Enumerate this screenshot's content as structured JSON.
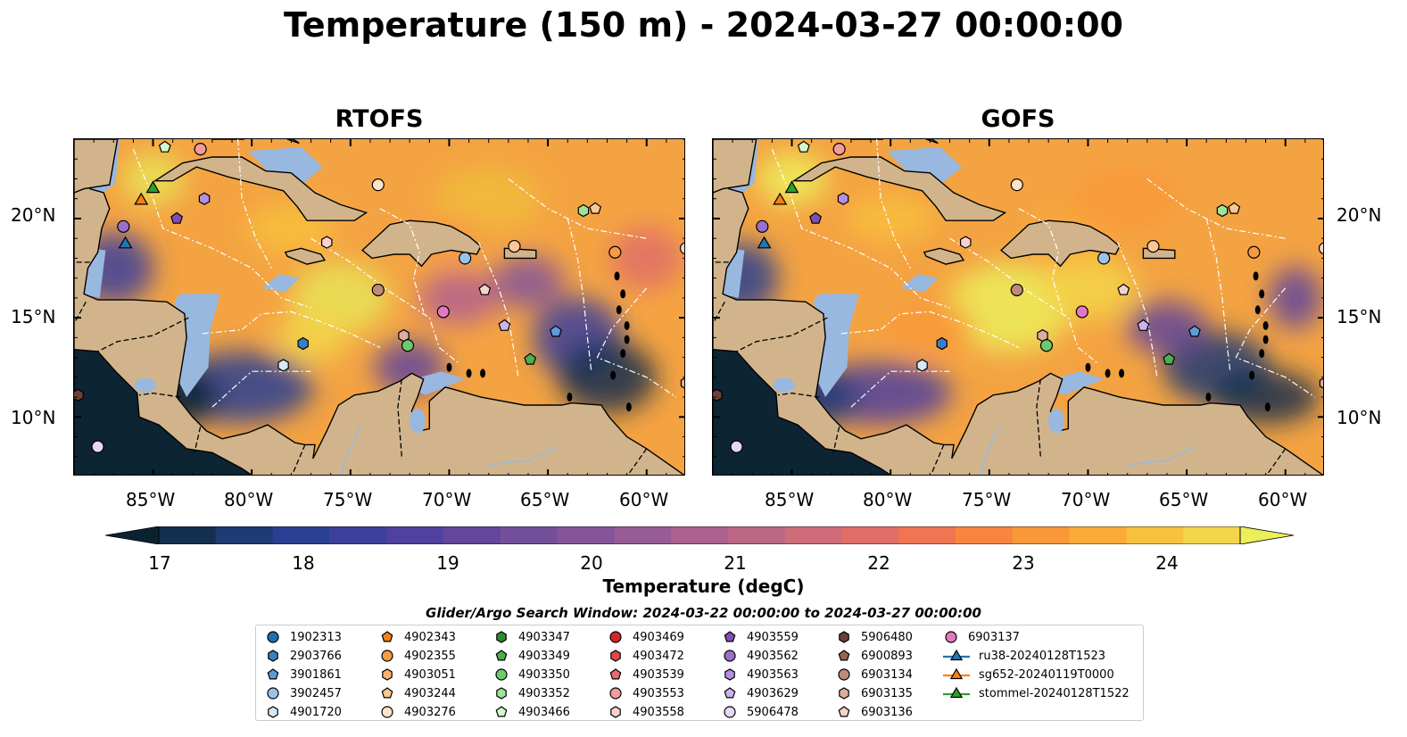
{
  "title": "Temperature (150 m) - 2024-03-27 00:00:00",
  "panels": [
    {
      "title": "RTOFS"
    },
    {
      "title": "GOFS"
    }
  ],
  "map": {
    "lon_range": [
      -89,
      -58
    ],
    "lat_range": [
      7,
      24
    ],
    "x_ticks": [
      "85°W",
      "80°W",
      "75°W",
      "70°W",
      "65°W",
      "60°W"
    ],
    "y_ticks": [
      "20°N",
      "15°N",
      "10°N"
    ],
    "land_color": "#d2b48c",
    "shelf_color": "#98b8e0",
    "deep_color": "#0d2433"
  },
  "colorbar": {
    "label": "Temperature (degC)",
    "ticks": [
      "17",
      "18",
      "19",
      "20",
      "21",
      "22",
      "23",
      "24"
    ],
    "range": [
      16.75,
      24.5
    ],
    "extend": "both",
    "colors": [
      "#0b2231",
      "#14304e",
      "#1e3b73",
      "#2a3f91",
      "#3c409c",
      "#50419e",
      "#62479c",
      "#734f9a",
      "#845599",
      "#975b95",
      "#aa618f",
      "#bc6785",
      "#cf6c79",
      "#e06e68",
      "#ef7553",
      "#f7853d",
      "#f99838",
      "#faaa38",
      "#f8c13d",
      "#f3d549",
      "#ecef5a"
    ]
  },
  "legend": {
    "title": "Glider/Argo Search Window: 2024-03-22 00:00:00 to 2024-03-27 00:00:00",
    "columns": [
      [
        {
          "label": "1902313",
          "marker": "circle",
          "color": "#1f6fb0"
        },
        {
          "label": "2903766",
          "marker": "hexagon",
          "color": "#3a7fc0"
        },
        {
          "label": "3901861",
          "marker": "pentagon",
          "color": "#5e9bd8"
        },
        {
          "label": "3902457",
          "marker": "circle",
          "color": "#9ac3ea"
        },
        {
          "label": "4901720",
          "marker": "hexagon",
          "color": "#d6e8f8"
        }
      ],
      [
        {
          "label": "4902343",
          "marker": "pentagon",
          "color": "#f57f17"
        },
        {
          "label": "4902355",
          "marker": "circle",
          "color": "#f79a44"
        },
        {
          "label": "4903051",
          "marker": "hexagon",
          "color": "#fbb36b"
        },
        {
          "label": "4903244",
          "marker": "pentagon",
          "color": "#fcc796"
        },
        {
          "label": "4903276",
          "marker": "circle",
          "color": "#fde3c7"
        }
      ],
      [
        {
          "label": "4903347",
          "marker": "hexagon",
          "color": "#2e8b2e"
        },
        {
          "label": "4903349",
          "marker": "pentagon",
          "color": "#4caf50"
        },
        {
          "label": "4903350",
          "marker": "circle",
          "color": "#6cc96c"
        },
        {
          "label": "4903352",
          "marker": "hexagon",
          "color": "#9ee39a"
        },
        {
          "label": "4903466",
          "marker": "pentagon",
          "color": "#d3f6cf"
        }
      ],
      [
        {
          "label": "4903469",
          "marker": "circle",
          "color": "#d62728"
        },
        {
          "label": "4903472",
          "marker": "hexagon",
          "color": "#e04848"
        },
        {
          "label": "4903539",
          "marker": "pentagon",
          "color": "#ea6b6b"
        },
        {
          "label": "4903553",
          "marker": "circle",
          "color": "#f39a9a"
        },
        {
          "label": "4903558",
          "marker": "hexagon",
          "color": "#fbd0d0"
        }
      ],
      [
        {
          "label": "4903559",
          "marker": "pentagon",
          "color": "#7e4fb0"
        },
        {
          "label": "4903562",
          "marker": "circle",
          "color": "#9b6fcc"
        },
        {
          "label": "4903563",
          "marker": "hexagon",
          "color": "#b38fde"
        },
        {
          "label": "4903629",
          "marker": "pentagon",
          "color": "#cdb2ec"
        },
        {
          "label": "5906478",
          "marker": "circle",
          "color": "#e5d6f7"
        }
      ],
      [
        {
          "label": "5906480",
          "marker": "hexagon",
          "color": "#6d4037"
        },
        {
          "label": "6900893",
          "marker": "pentagon",
          "color": "#9a6454"
        },
        {
          "label": "6903134",
          "marker": "circle",
          "color": "#c08a7a"
        },
        {
          "label": "6903135",
          "marker": "hexagon",
          "color": "#dbaea1"
        },
        {
          "label": "6903136",
          "marker": "pentagon",
          "color": "#f3d4cb"
        }
      ],
      [
        {
          "label": "6903137",
          "marker": "circle",
          "color": "#e377c2"
        },
        {
          "label": "ru38-20240128T1523",
          "marker": "triangle-line",
          "color": "#1f77b4"
        },
        {
          "label": "sg652-20240119T0000",
          "marker": "triangle-line",
          "color": "#ff7f0e"
        },
        {
          "label": "stommel-20240128T1522",
          "marker": "triangle-line",
          "color": "#2ca02c"
        }
      ]
    ]
  },
  "floats": [
    {
      "lon": -86.5,
      "lat": 19.6,
      "marker": "circle",
      "color": "#9b6fcc"
    },
    {
      "lon": -83.8,
      "lat": 20.0,
      "marker": "pentagon",
      "color": "#7e4fb0"
    },
    {
      "lon": -82.4,
      "lat": 21.0,
      "marker": "hexagon",
      "color": "#b38fde"
    },
    {
      "lon": -84.4,
      "lat": 23.6,
      "marker": "pentagon",
      "color": "#d3f6cf"
    },
    {
      "lon": -82.6,
      "lat": 23.5,
      "marker": "circle",
      "color": "#f39a9a"
    },
    {
      "lon": -73.6,
      "lat": 21.7,
      "marker": "circle",
      "color": "#fde3c7"
    },
    {
      "lon": -76.2,
      "lat": 18.8,
      "marker": "hexagon",
      "color": "#fbd0d0"
    },
    {
      "lon": -73.6,
      "lat": 16.4,
      "marker": "circle",
      "color": "#c08a7a"
    },
    {
      "lon": -70.3,
      "lat": 15.3,
      "marker": "circle",
      "color": "#e377c2"
    },
    {
      "lon": -72.3,
      "lat": 14.1,
      "marker": "hexagon",
      "color": "#dbaea1"
    },
    {
      "lon": -72.1,
      "lat": 13.6,
      "marker": "circle",
      "color": "#6cc96c"
    },
    {
      "lon": -77.4,
      "lat": 13.7,
      "marker": "hexagon",
      "color": "#3a7fc0"
    },
    {
      "lon": -78.4,
      "lat": 12.6,
      "marker": "hexagon",
      "color": "#d6e8f8"
    },
    {
      "lon": -69.2,
      "lat": 18.0,
      "marker": "circle",
      "color": "#9ac3ea"
    },
    {
      "lon": -68.2,
      "lat": 16.4,
      "marker": "pentagon",
      "color": "#f3d4cb"
    },
    {
      "lon": -66.7,
      "lat": 18.6,
      "marker": "circle",
      "color": "#fcc796"
    },
    {
      "lon": -67.2,
      "lat": 14.6,
      "marker": "pentagon",
      "color": "#cdb2ec"
    },
    {
      "lon": -65.9,
      "lat": 12.9,
      "marker": "pentagon",
      "color": "#4caf50"
    },
    {
      "lon": -64.6,
      "lat": 14.3,
      "marker": "pentagon",
      "color": "#5e9bd8"
    },
    {
      "lon": -63.2,
      "lat": 20.4,
      "marker": "hexagon",
      "color": "#9ee39a"
    },
    {
      "lon": -62.6,
      "lat": 20.5,
      "marker": "pentagon",
      "color": "#fcc796"
    },
    {
      "lon": -61.6,
      "lat": 18.3,
      "marker": "circle",
      "color": "#f79a44"
    },
    {
      "lon": -58.0,
      "lat": 18.5,
      "marker": "circle",
      "color": "#f3d4cb"
    },
    {
      "lon": -88.8,
      "lat": 11.1,
      "marker": "hexagon",
      "color": "#6d4037"
    },
    {
      "lon": -58.0,
      "lat": 11.7,
      "marker": "hexagon",
      "color": "#dbaea1"
    },
    {
      "lon": -87.8,
      "lat": 8.5,
      "marker": "circle",
      "color": "#e5d6f7"
    }
  ],
  "gliders": [
    {
      "lon": -86.4,
      "lat": 18.7,
      "color": "#1f77b4"
    },
    {
      "lon": -85.6,
      "lat": 20.9,
      "color": "#ff7f0e"
    },
    {
      "lon": -85.0,
      "lat": 21.5,
      "color": "#2ca02c"
    }
  ]
}
